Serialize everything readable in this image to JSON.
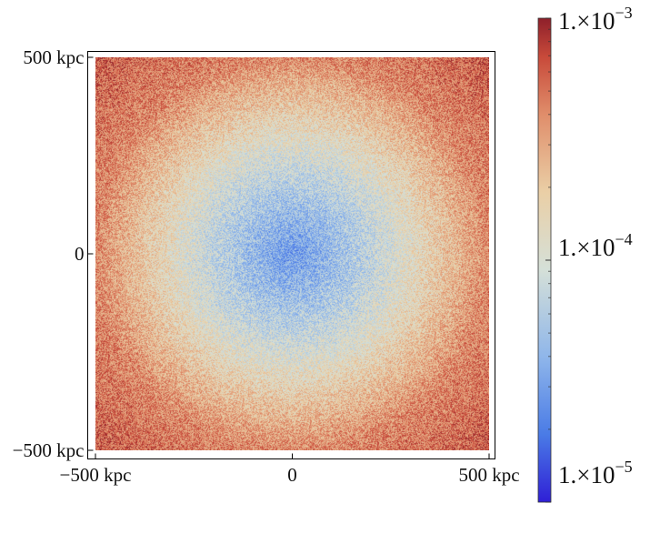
{
  "chart_data": {
    "type": "heatmap",
    "title": "",
    "xlabel": "",
    "ylabel": "",
    "x_ticks": [
      {
        "value": -500,
        "label": "−500 kpc"
      },
      {
        "value": 0,
        "label": "0"
      },
      {
        "value": 500,
        "label": "500 kpc"
      }
    ],
    "y_ticks": [
      {
        "value": 500,
        "label": "500 kpc"
      },
      {
        "value": 0,
        "label": "0"
      },
      {
        "value": -500,
        "label": "−500 kpc"
      }
    ],
    "xlim": [
      -500,
      500
    ],
    "ylim": [
      -500,
      500
    ],
    "colorbar": {
      "scale": "log",
      "range": [
        1e-05,
        0.001
      ],
      "ticks": [
        {
          "value": 0.001,
          "mantissa": "1.×10",
          "exponent": "−3"
        },
        {
          "value": 0.0001,
          "mantissa": "1.×10",
          "exponent": "−4"
        },
        {
          "value": 1e-05,
          "mantissa": "1.×10",
          "exponent": "−5"
        }
      ],
      "colormap": [
        "#2f1fd6",
        "#4a7be6",
        "#8fb6ea",
        "#d5e0d8",
        "#eacfa6",
        "#e08e6b",
        "#c84a3a",
        "#8e1f2a"
      ]
    },
    "field": {
      "description_shape": "radially increasing from center",
      "center_value": 3e-05,
      "edge_value": 0.0004,
      "corner_value": 0.0006,
      "noise": "grainy"
    }
  }
}
